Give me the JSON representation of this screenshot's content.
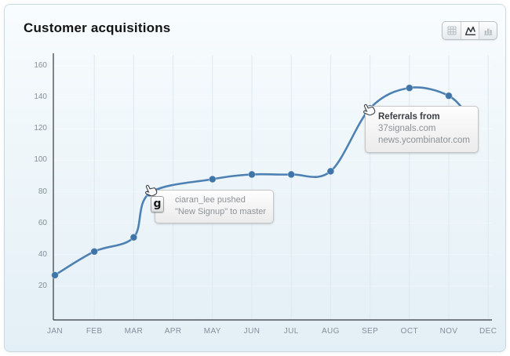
{
  "header": {
    "title": "Customer acquisitions"
  },
  "toolbar": {
    "buttons": [
      {
        "id": "grid",
        "icon": "grid-icon",
        "active": false
      },
      {
        "id": "line",
        "icon": "line-chart-icon",
        "active": true
      },
      {
        "id": "bar",
        "icon": "bar-chart-icon",
        "active": false
      }
    ]
  },
  "chart_data": {
    "type": "line",
    "title": "Customer acquisitions",
    "categories": [
      "JAN",
      "FEB",
      "MAR",
      "APR",
      "MAY",
      "JUN",
      "JUL",
      "AUG",
      "SEP",
      "OCT",
      "NOV",
      "DEC"
    ],
    "yticks": [
      20,
      40,
      60,
      80,
      100,
      120,
      140,
      160
    ],
    "ylim": [
      0,
      168
    ],
    "grid": "faint vertical month lines",
    "legend": "none",
    "line_color": "#4e81b3",
    "point_color": "#3f74a8",
    "axis_color": "#33373b",
    "tick_color": "#82909b",
    "points": [
      {
        "x": 0,
        "y": 27,
        "marker": true
      },
      {
        "x": 1,
        "y": 42,
        "marker": true
      },
      {
        "x": 2,
        "y": 51,
        "marker": true
      },
      {
        "x": 2.4,
        "y": 79,
        "marker": true,
        "annotation": 0
      },
      {
        "x": 4,
        "y": 88,
        "marker": true
      },
      {
        "x": 5,
        "y": 91,
        "marker": true
      },
      {
        "x": 6,
        "y": 91,
        "marker": true
      },
      {
        "x": 7,
        "y": 93,
        "marker": true
      },
      {
        "x": 8,
        "y": 133,
        "marker": true,
        "annotation": 1
      },
      {
        "x": 9,
        "y": 146,
        "marker": true
      },
      {
        "x": 10,
        "y": 141,
        "marker": true
      },
      {
        "x": 10.55,
        "y": 126,
        "marker": false
      }
    ],
    "annotations": [
      {
        "icon": "git-icon",
        "icon_glyph": "g",
        "lines": [
          {
            "text": "ciaran_lee pushed",
            "emphasis": false
          },
          {
            "text": "\"New Signup\" to master",
            "emphasis": false
          }
        ]
      },
      {
        "icon": null,
        "lines": [
          {
            "text": "Referrals from",
            "emphasis": true
          },
          {
            "text": "37signals.com",
            "emphasis": false
          },
          {
            "text": "news.ycombinator.com",
            "emphasis": false
          }
        ]
      }
    ]
  }
}
